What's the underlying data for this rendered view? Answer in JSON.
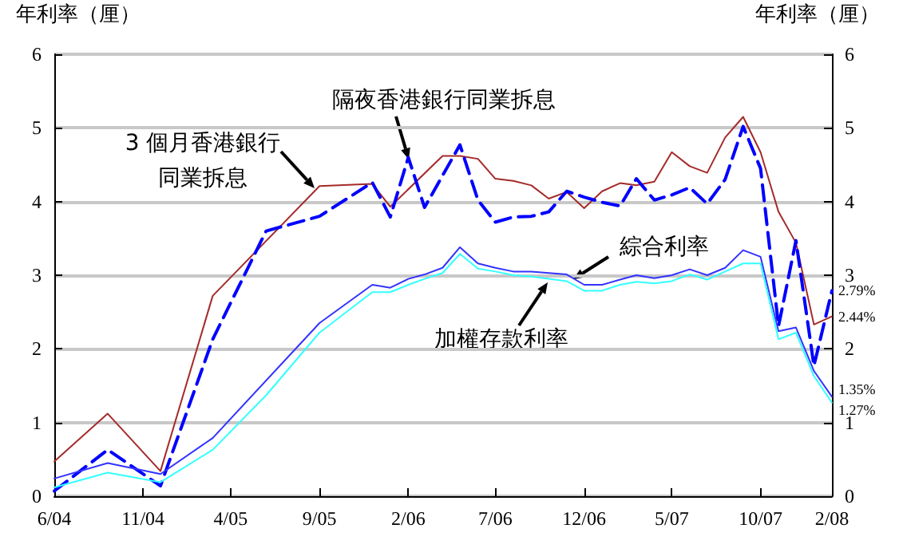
{
  "chart_data": {
    "type": "line",
    "ylabel": "年利率（厘）",
    "y2label": "年利率（厘）",
    "xlim": [
      "2004-06",
      "2008-02"
    ],
    "xticks": [
      {
        "value": "2004-06",
        "label": "6/04"
      },
      {
        "value": "2004-11",
        "label": "11/04"
      },
      {
        "value": "2005-04",
        "label": "4/05"
      },
      {
        "value": "2005-09",
        "label": "9/05"
      },
      {
        "value": "2006-02",
        "label": "2/06"
      },
      {
        "value": "2006-07",
        "label": "7/06"
      },
      {
        "value": "2006-12",
        "label": "12/06"
      },
      {
        "value": "2007-05",
        "label": "5/07"
      },
      {
        "value": "2007-10",
        "label": "10/07"
      },
      {
        "value": "2008-02",
        "label": "2/08"
      }
    ],
    "ylim": [
      0,
      6
    ],
    "yticks": [
      0,
      1,
      2,
      3,
      4,
      5,
      6
    ],
    "y2lim": [
      0,
      6
    ],
    "y2ticks": [
      0,
      1,
      2,
      3,
      4,
      5,
      6
    ],
    "grid": "y",
    "legend": false,
    "marker": "none",
    "series": [
      {
        "name": "3 個月香港銀行同業拆息",
        "color": "#a52a2a",
        "line_style": "solid",
        "x": [
          "2004-06",
          "2004-09",
          "2004-12",
          "2005-03",
          "2005-09",
          "2005-12",
          "2006-01",
          "2006-04",
          "2006-05",
          "2006-06",
          "2006-07",
          "2006-08",
          "2006-09",
          "2006-10",
          "2006-11",
          "2006-12",
          "2007-01",
          "2007-02",
          "2007-03",
          "2007-04",
          "2007-05",
          "2007-06",
          "2007-07",
          "2007-08",
          "2007-09",
          "2007-10",
          "2007-11",
          "2007-12",
          "2008-01",
          "2008-02"
        ],
        "values": [
          0.47,
          1.12,
          0.34,
          2.72,
          4.21,
          4.24,
          3.93,
          4.62,
          4.62,
          4.58,
          4.31,
          4.28,
          4.22,
          4.04,
          4.13,
          3.91,
          4.14,
          4.25,
          4.22,
          4.27,
          4.67,
          4.48,
          4.39,
          4.87,
          5.15,
          4.67,
          3.86,
          3.44,
          2.33,
          2.44
        ]
      },
      {
        "name": "隔夜香港銀行同業拆息",
        "color": "#0000ff",
        "line_style": "dashed",
        "x": [
          "2004-06",
          "2004-09",
          "2004-12",
          "2005-03",
          "2005-06",
          "2005-09",
          "2005-12",
          "2006-01",
          "2006-02",
          "2006-03",
          "2006-05",
          "2006-06",
          "2006-07",
          "2006-08",
          "2006-09",
          "2006-10",
          "2006-11",
          "2006-12",
          "2007-01",
          "2007-02",
          "2007-03",
          "2007-04",
          "2007-05",
          "2007-06",
          "2007-07",
          "2007-08",
          "2007-09",
          "2007-10",
          "2007-11",
          "2007-12",
          "2008-01",
          "2008-02"
        ],
        "values": [
          0.07,
          0.63,
          0.14,
          2.13,
          3.6,
          3.8,
          4.26,
          3.79,
          4.6,
          3.92,
          4.77,
          4.02,
          3.72,
          3.79,
          3.8,
          3.86,
          4.14,
          4.06,
          3.99,
          3.94,
          4.31,
          4.02,
          4.09,
          4.19,
          3.97,
          4.3,
          5.02,
          4.45,
          2.31,
          3.47,
          1.77,
          2.79
        ]
      },
      {
        "name": "綜合利率",
        "color": "#3333ff",
        "line_style": "solid",
        "x": [
          "2004-06",
          "2004-09",
          "2004-12",
          "2005-03",
          "2005-09",
          "2005-12",
          "2006-01",
          "2006-02",
          "2006-03",
          "2006-04",
          "2006-05",
          "2006-06",
          "2006-07",
          "2006-08",
          "2006-09",
          "2006-10",
          "2006-11",
          "2006-12",
          "2007-01",
          "2007-02",
          "2007-03",
          "2007-04",
          "2007-05",
          "2007-06",
          "2007-07",
          "2007-08",
          "2007-09",
          "2007-10",
          "2007-11",
          "2007-12",
          "2008-01",
          "2008-02"
        ],
        "values": [
          0.24,
          0.45,
          0.3,
          0.79,
          2.35,
          2.87,
          2.83,
          2.95,
          3.01,
          3.1,
          3.38,
          3.16,
          3.1,
          3.05,
          3.05,
          3.03,
          3.01,
          2.87,
          2.87,
          2.94,
          3.0,
          2.96,
          3.0,
          3.08,
          3.0,
          3.1,
          3.34,
          3.25,
          2.24,
          2.29,
          1.7,
          1.35
        ]
      },
      {
        "name": "加權存款利率",
        "color": "#33ffff",
        "line_style": "solid",
        "x": [
          "2004-06",
          "2004-09",
          "2004-12",
          "2005-03",
          "2005-06",
          "2005-09",
          "2005-12",
          "2006-01",
          "2006-02",
          "2006-03",
          "2006-04",
          "2006-05",
          "2006-06",
          "2006-07",
          "2006-08",
          "2006-09",
          "2006-10",
          "2006-11",
          "2006-12",
          "2007-01",
          "2007-02",
          "2007-03",
          "2007-04",
          "2007-05",
          "2007-06",
          "2007-07",
          "2007-08",
          "2007-09",
          "2007-10",
          "2007-11",
          "2007-12",
          "2008-01",
          "2008-02"
        ],
        "values": [
          0.12,
          0.32,
          0.19,
          0.63,
          1.37,
          2.22,
          2.77,
          2.77,
          2.87,
          2.95,
          3.03,
          3.29,
          3.09,
          3.05,
          3.0,
          2.98,
          2.95,
          2.92,
          2.79,
          2.79,
          2.87,
          2.91,
          2.89,
          2.92,
          3.01,
          2.94,
          3.05,
          3.16,
          3.16,
          2.13,
          2.22,
          1.63,
          1.27
        ]
      }
    ],
    "annotations": [
      {
        "text": "2.79%",
        "x": "2008-02",
        "y": 2.79
      },
      {
        "text": "2.44%",
        "x": "2008-02",
        "y": 2.44
      },
      {
        "text": "1.35%",
        "x": "2008-02",
        "y": 1.35
      },
      {
        "text": "1.27%",
        "x": "2008-02",
        "y": 1.27
      }
    ]
  }
}
